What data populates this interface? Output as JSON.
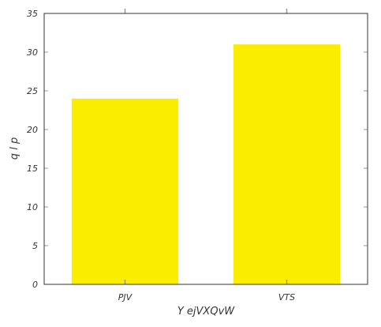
{
  "chart_data": {
    "type": "bar",
    "categories": [
      "PJV",
      "VTS"
    ],
    "values": [
      24,
      31
    ],
    "title": "",
    "xlabel": "Y  ejVXQvW",
    "ylabel": "q  l  p",
    "ylim": [
      0,
      35
    ],
    "yticks": [
      0,
      5,
      10,
      15,
      20,
      25,
      30,
      35
    ],
    "grid": false,
    "bar_color": "#faed00",
    "axis_color": "#333333",
    "tick_color": "#999999"
  }
}
